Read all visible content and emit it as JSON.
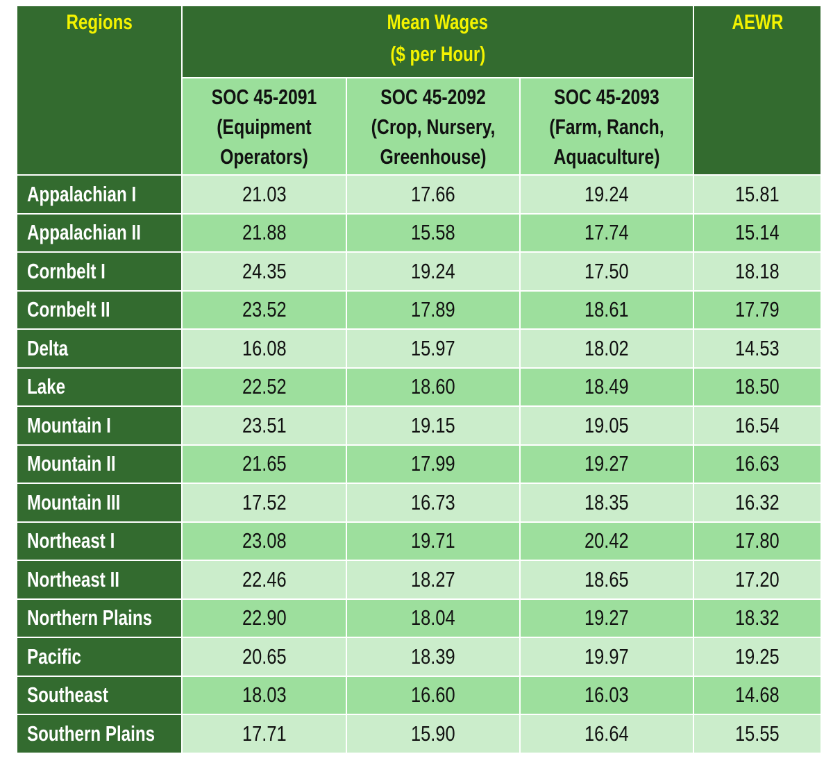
{
  "table": {
    "header": {
      "regions": "Regions",
      "mean_wages": [
        "Mean Wages",
        "($ per Hour)"
      ],
      "aewr": "AEWR",
      "columns": [
        [
          "SOC 45-2091",
          "(Equipment",
          "Operators)"
        ],
        [
          "SOC 45-2092",
          "(Crop, Nursery,",
          "Greenhouse)"
        ],
        [
          "SOC 45-2093",
          "(Farm, Ranch,",
          "Aquaculture)"
        ]
      ]
    },
    "rows": [
      [
        "Appalachian I",
        "21.03",
        "17.66",
        "19.24",
        "15.81"
      ],
      [
        "Appalachian II",
        "21.88",
        "15.58",
        "17.74",
        "15.14"
      ],
      [
        "Cornbelt I",
        "24.35",
        "19.24",
        "17.50",
        "18.18"
      ],
      [
        "Cornbelt II",
        "23.52",
        "17.89",
        "18.61",
        "17.79"
      ],
      [
        "Delta",
        "16.08",
        "15.97",
        "18.02",
        "14.53"
      ],
      [
        "Lake",
        "22.52",
        "18.60",
        "18.49",
        "18.50"
      ],
      [
        "Mountain I",
        "23.51",
        "19.15",
        "19.05",
        "16.54"
      ],
      [
        "Mountain II",
        "21.65",
        "17.99",
        "19.27",
        "16.63"
      ],
      [
        "Mountain III",
        "17.52",
        "16.73",
        "18.35",
        "16.32"
      ],
      [
        "Northeast I",
        "23.08",
        "19.71",
        "20.42",
        "17.80"
      ],
      [
        "Northeast II",
        "22.46",
        "18.27",
        "18.65",
        "17.20"
      ],
      [
        "Northern Plains",
        "22.90",
        "18.04",
        "19.27",
        "18.32"
      ],
      [
        "Pacific",
        "20.65",
        "18.39",
        "19.97",
        "19.25"
      ],
      [
        "Southeast",
        "18.03",
        "16.60",
        "16.03",
        "14.68"
      ],
      [
        "Southern Plains",
        "17.71",
        "15.90",
        "16.64",
        "15.55"
      ]
    ]
  }
}
